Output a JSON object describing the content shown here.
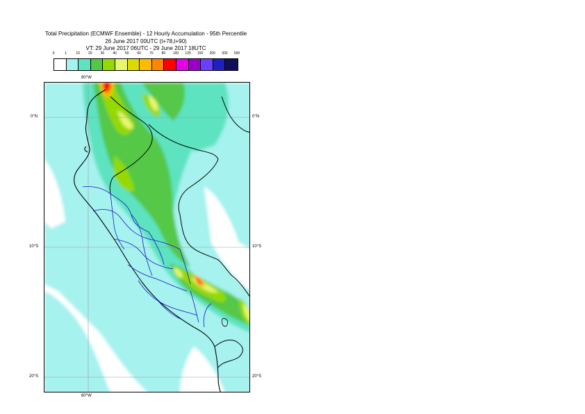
{
  "title": {
    "line1": "Total Precipitation (ECMWF Ensemble) - 12 Hourly Accumulation - 95th Percentile",
    "line2": "26 June 2017 00UTC (t+78,t+90)",
    "line3": "VT: 29 June 2017 06UTC - 29 June 2017 18UTC"
  },
  "legend": {
    "ticks": [
      "0",
      "1",
      "10",
      "20",
      "30",
      "40",
      "50",
      "60",
      "70",
      "80",
      "100",
      "125",
      "150",
      "200",
      "300",
      "500"
    ],
    "colors": [
      "#ffffff",
      "#a6f2ee",
      "#5de3c0",
      "#54c846",
      "#94d900",
      "#e8f56e",
      "#dbdb00",
      "#ffbb00",
      "#ff8400",
      "#ff0000",
      "#e600e6",
      "#9b00c8",
      "#6a40ff",
      "#2020c0",
      "#10105a"
    ]
  },
  "axes": {
    "lon_top": "80°W",
    "lon_bottom": "80°W",
    "lat_left": [
      "0°N",
      "10°S",
      "20°S"
    ],
    "lat_right": [
      "0°N",
      "10°S",
      "20°S"
    ]
  }
}
